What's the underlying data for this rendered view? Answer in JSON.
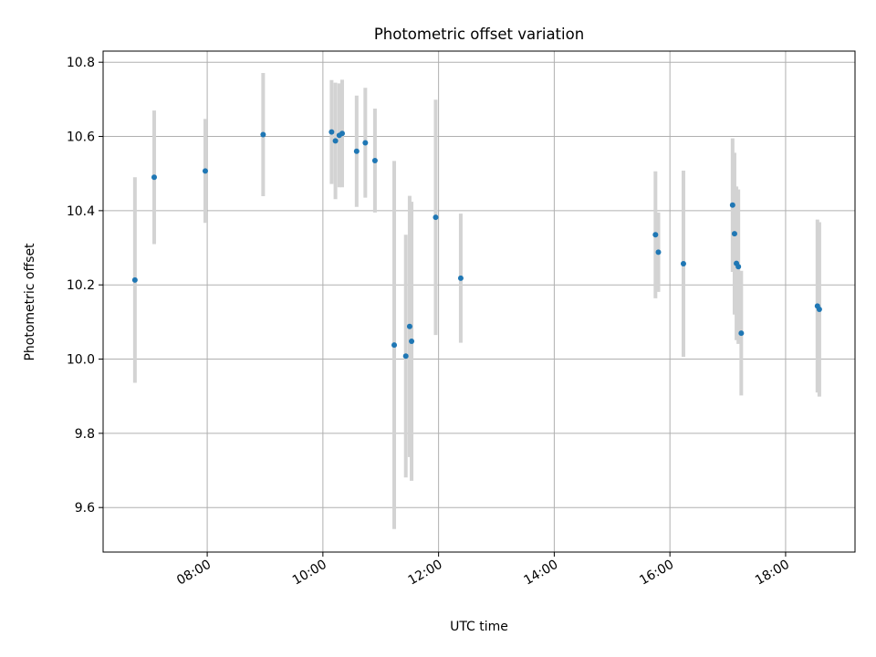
{
  "chart_data": {
    "type": "scatter",
    "title": "Photometric offset variation",
    "xlabel": "UTC time",
    "ylabel": "Photometric offset",
    "x_range_hours": [
      6.2,
      19.2
    ],
    "ylim": [
      9.48,
      10.83
    ],
    "x_tick_hours": [
      8,
      10,
      12,
      14,
      16,
      18
    ],
    "x_tick_labels": [
      "08:00",
      "10:00",
      "12:00",
      "14:00",
      "16:00",
      "18:00"
    ],
    "y_ticks": [
      9.6,
      9.8,
      10.0,
      10.2,
      10.4,
      10.6,
      10.8
    ],
    "y_tick_labels": [
      "9.6",
      "9.8",
      "10.0",
      "10.2",
      "10.4",
      "10.6",
      "10.8"
    ],
    "grid": true,
    "legend": "none",
    "marker_color": "#1f77b4",
    "errorbar_color": "#d3d3d3",
    "points": [
      {
        "time": "06:45",
        "y": 10.213,
        "err": 0.277
      },
      {
        "time": "07:05",
        "y": 10.49,
        "err": 0.18
      },
      {
        "time": "07:58",
        "y": 10.507,
        "err": 0.14
      },
      {
        "time": "08:58",
        "y": 10.605,
        "err": 0.166
      },
      {
        "time": "10:09",
        "y": 10.612,
        "err": 0.14
      },
      {
        "time": "10:13",
        "y": 10.588,
        "err": 0.157
      },
      {
        "time": "10:17",
        "y": 10.603,
        "err": 0.14
      },
      {
        "time": "10:20",
        "y": 10.608,
        "err": 0.145
      },
      {
        "time": "10:35",
        "y": 10.56,
        "err": 0.15
      },
      {
        "time": "10:44",
        "y": 10.583,
        "err": 0.148
      },
      {
        "time": "10:54",
        "y": 10.535,
        "err": 0.14
      },
      {
        "time": "11:14",
        "y": 10.038,
        "err": 0.496
      },
      {
        "time": "11:26",
        "y": 10.008,
        "err": 0.327
      },
      {
        "time": "11:30",
        "y": 10.088,
        "err": 0.352
      },
      {
        "time": "11:32",
        "y": 10.048,
        "err": 0.376
      },
      {
        "time": "11:57",
        "y": 10.382,
        "err": 0.317
      },
      {
        "time": "12:23",
        "y": 10.218,
        "err": 0.174
      },
      {
        "time": "15:45",
        "y": 10.335,
        "err": 0.171
      },
      {
        "time": "15:48",
        "y": 10.288,
        "err": 0.107
      },
      {
        "time": "16:14",
        "y": 10.257,
        "err": 0.251
      },
      {
        "time": "17:05",
        "y": 10.415,
        "err": 0.18
      },
      {
        "time": "17:07",
        "y": 10.338,
        "err": 0.218
      },
      {
        "time": "17:09",
        "y": 10.258,
        "err": 0.207
      },
      {
        "time": "17:11",
        "y": 10.249,
        "err": 0.208
      },
      {
        "time": "17:14",
        "y": 10.07,
        "err": 0.168
      },
      {
        "time": "18:33",
        "y": 10.143,
        "err": 0.233
      },
      {
        "time": "18:35",
        "y": 10.134,
        "err": 0.235
      }
    ]
  }
}
